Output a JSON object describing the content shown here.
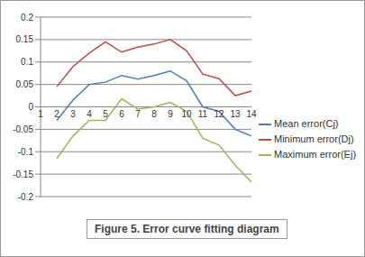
{
  "chart_data": {
    "type": "line",
    "title": "Figure 5. Error curve fitting diagram",
    "categories": [
      "1",
      "2",
      "3",
      "4",
      "5",
      "6",
      "7",
      "8",
      "9",
      "10",
      "11",
      "12",
      "13",
      "14"
    ],
    "series": [
      {
        "name": "Mean error(Cj)",
        "color": "#4a7ebb",
        "values": [
          null,
          -0.03,
          0.015,
          0.05,
          0.055,
          0.07,
          0.062,
          0.07,
          0.08,
          0.058,
          0.0,
          -0.01,
          -0.05,
          -0.065
        ]
      },
      {
        "name": "Minimum error(Dj)",
        "color": "#be4b48",
        "values": [
          null,
          0.045,
          0.09,
          0.12,
          0.145,
          0.122,
          0.133,
          0.14,
          0.15,
          0.125,
          0.073,
          0.063,
          0.025,
          0.035
        ]
      },
      {
        "name": "Maximum error(Ej)",
        "color": "#98b954",
        "values": [
          null,
          -0.115,
          -0.065,
          -0.03,
          -0.03,
          0.018,
          -0.005,
          0.0,
          0.01,
          -0.01,
          -0.07,
          -0.085,
          -0.13,
          -0.168
        ]
      }
    ],
    "ylim": [
      -0.2,
      0.2
    ],
    "yticks": [
      -0.2,
      -0.15,
      -0.1,
      -0.05,
      0,
      0.05,
      0.1,
      0.15,
      0.2
    ],
    "grid": true,
    "legend": "right"
  }
}
